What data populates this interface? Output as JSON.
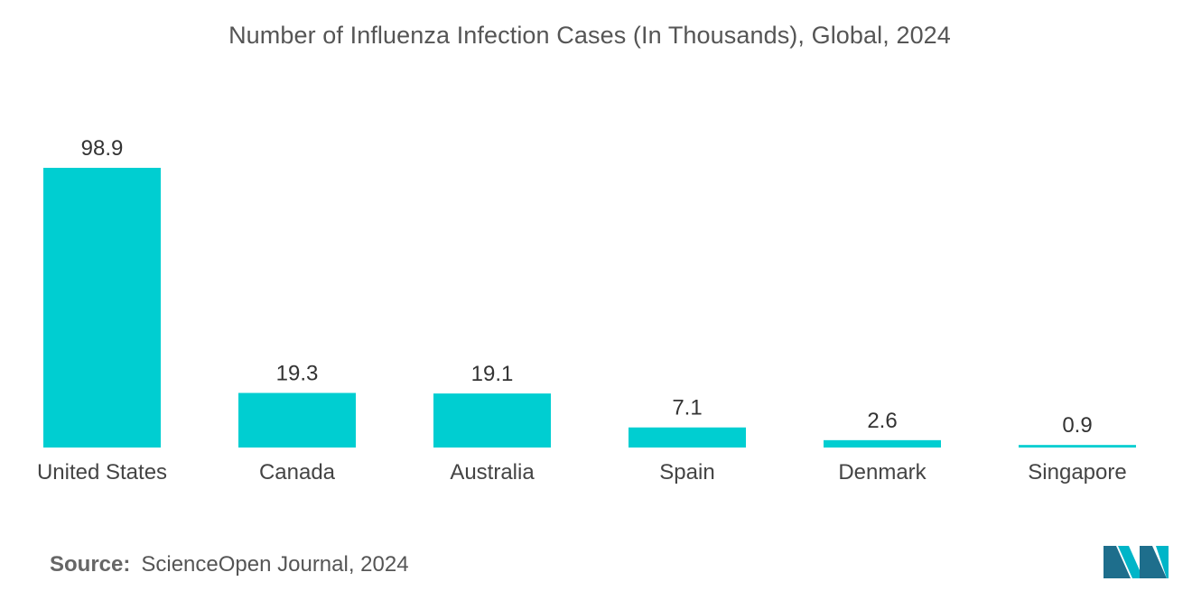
{
  "chart_data": {
    "type": "bar",
    "title": "Number of Influenza Infection Cases (In Thousands), Global, 2024",
    "categories": [
      "United States",
      "Canada",
      "Australia",
      "Spain",
      "Denmark",
      "Singapore"
    ],
    "values": [
      98.9,
      19.3,
      19.1,
      7.1,
      2.6,
      0.9
    ],
    "xlabel": "",
    "ylabel": "",
    "ylim": [
      0,
      98.9
    ],
    "grid": false,
    "legend": "none",
    "bar_color": "#00CED1"
  },
  "source": {
    "label": "Source:",
    "text": "ScienceOpen Journal, 2024"
  },
  "logo": {
    "icon": "mordor-intelligence-logo-icon",
    "colors": [
      "#1E6E8C",
      "#00B5C8"
    ]
  }
}
